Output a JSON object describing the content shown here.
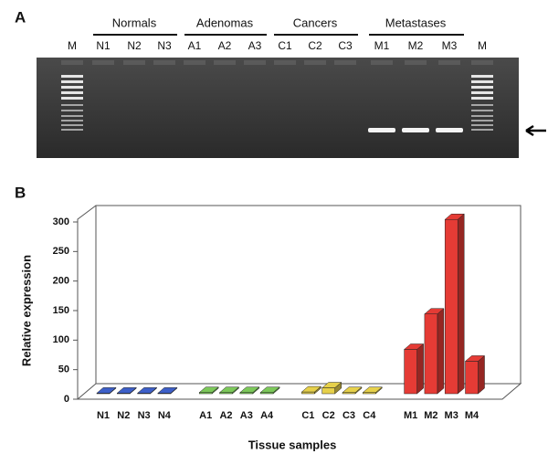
{
  "panel_a": {
    "label": "A",
    "groups": [
      "Normals",
      "Adenomas",
      "Cancers",
      "Metastases"
    ],
    "lanes": [
      "M",
      "N1",
      "N2",
      "N3",
      "A1",
      "A2",
      "A3",
      "C1",
      "C2",
      "C3",
      "M1",
      "M2",
      "M3",
      "M"
    ]
  },
  "chart_data": {
    "type": "bar3d",
    "panel_label": "B",
    "y_label": "Relative expression",
    "x_label": "Tissue samples",
    "categories": [
      "N1",
      "N2",
      "N3",
      "N4",
      "A1",
      "A2",
      "A3",
      "A4",
      "C1",
      "C2",
      "C3",
      "C4",
      "M1",
      "M2",
      "M3",
      "M4"
    ],
    "values": [
      1,
      1,
      1,
      1,
      2,
      2,
      2,
      2,
      3,
      10,
      2,
      2,
      75,
      135,
      295,
      55
    ],
    "colors": [
      "#3d5fc8",
      "#3d5fc8",
      "#3d5fc8",
      "#3d5fc8",
      "#7cc85a",
      "#7cc85a",
      "#7cc85a",
      "#7cc85a",
      "#e6d04a",
      "#e6d04a",
      "#e6d04a",
      "#e6d04a",
      "#e53b35",
      "#e53b35",
      "#e53b35",
      "#e53b35"
    ],
    "ylim": [
      0,
      300
    ],
    "yticks": [
      0,
      50,
      100,
      150,
      200,
      250,
      300
    ]
  }
}
